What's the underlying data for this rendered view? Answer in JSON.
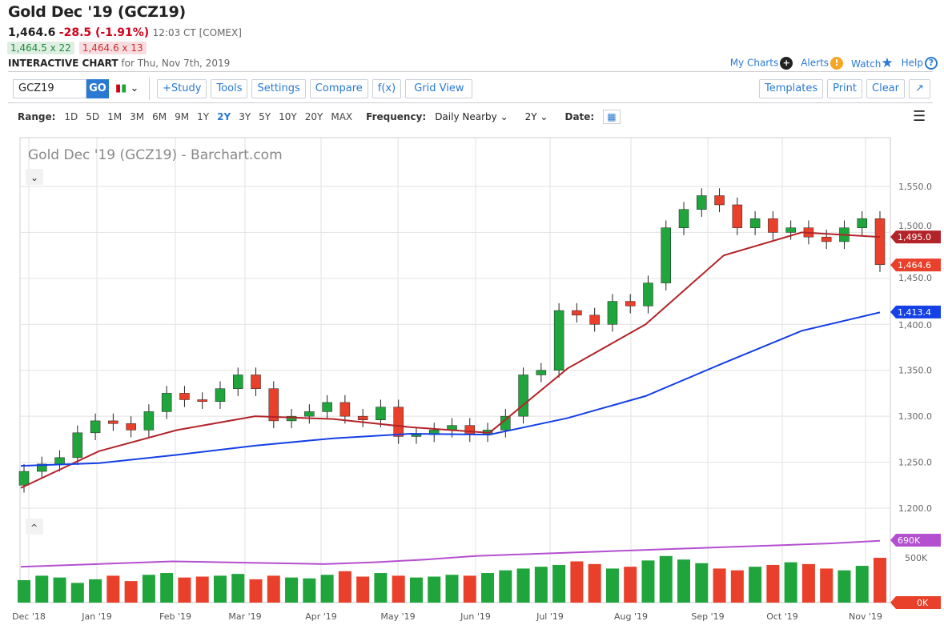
{
  "header": {
    "title": "Gold Dec '19 (GCZ19)",
    "last": "1,464.6",
    "change": "-28.5 (-1.91%)",
    "time": "12:03 CT [COMEX]",
    "bid": "1,464.5 x 22",
    "ask": "1,464.6 x 13",
    "chart_label": "INTERACTIVE CHART",
    "chart_date": "for Thu, Nov 7th, 2019"
  },
  "links": {
    "my_charts": "My Charts",
    "alerts": "Alerts",
    "watch": "Watch",
    "help": "Help"
  },
  "toolbar": {
    "symbol": "GCZ19",
    "go": "GO",
    "study": "+Study",
    "tools": "Tools",
    "settings": "Settings",
    "compare": "Compare",
    "fx": "f(x)",
    "grid": "Grid View",
    "templates": "Templates",
    "print": "Print",
    "clear": "Clear"
  },
  "range": {
    "label": "Range:",
    "options": [
      "1D",
      "5D",
      "1M",
      "3M",
      "6M",
      "9M",
      "1Y",
      "2Y",
      "3Y",
      "5Y",
      "10Y",
      "20Y",
      "MAX"
    ],
    "active": "2Y",
    "frequency_label": "Frequency:",
    "frequency": "Daily Nearby",
    "period": "2Y",
    "date_label": "Date:"
  },
  "colors": {
    "up": "#1fa53c",
    "down": "#e8402a",
    "ma50": "#b22429",
    "ma200": "#1440e6",
    "volma": "#b44fd0",
    "accent": "#2a7ad2"
  },
  "chart_data": {
    "type": "candlestick",
    "title": "Gold Dec '19 (GCZ19) - Barchart.com",
    "x_ticks": [
      "Dec '18",
      "Jan '19",
      "Feb '19",
      "Mar '19",
      "Apr '19",
      "May '19",
      "Jun '19",
      "Jul '19",
      "Aug '19",
      "Sep '19",
      "Oct '19",
      "Nov '19"
    ],
    "y_ticks": [
      "1,550.0",
      "1,500.0",
      "1,450.0",
      "1,400.0",
      "1,350.0",
      "1,300.0",
      "1,250.0",
      "1,200.0"
    ],
    "ylim": [
      1200,
      1560
    ],
    "weekly_close": [
      1240,
      1248,
      1255,
      1282,
      1295,
      1292,
      1285,
      1305,
      1325,
      1318,
      1316,
      1330,
      1345,
      1330,
      1295,
      1300,
      1305,
      1315,
      1300,
      1296,
      1310,
      1278,
      1280,
      1285,
      1290,
      1280,
      1285,
      1300,
      1345,
      1350,
      1415,
      1410,
      1400,
      1425,
      1420,
      1445,
      1505,
      1525,
      1540,
      1530,
      1505,
      1515,
      1500,
      1505,
      1495,
      1490,
      1505,
      1515,
      1465
    ],
    "ma50": [
      1222,
      1262,
      1285,
      1300,
      1297,
      1288,
      1282,
      1352,
      1400,
      1475,
      1500,
      1495
    ],
    "ma200": [
      1246,
      1249,
      1258,
      1268,
      1276,
      1281,
      1280,
      1298,
      1322,
      1358,
      1393,
      1413
    ],
    "price_labels": {
      "ma50": "1,495.0",
      "last": "1,464.6",
      "ma200": "1,413.4"
    },
    "volume": {
      "weekly_k": [
        250,
        300,
        280,
        220,
        260,
        300,
        240,
        310,
        330,
        280,
        290,
        300,
        320,
        260,
        300,
        280,
        270,
        310,
        350,
        290,
        330,
        300,
        280,
        290,
        310,
        300,
        330,
        360,
        380,
        400,
        420,
        460,
        430,
        380,
        400,
        470,
        520,
        480,
        440,
        380,
        360,
        400,
        420,
        450,
        430,
        380,
        360,
        410,
        500
      ],
      "ma_k": [
        400,
        420,
        440,
        460,
        450,
        440,
        430,
        450,
        480,
        520,
        540,
        560,
        580,
        600,
        620,
        640,
        660,
        690
      ],
      "y_ticks": [
        "500K",
        "0K"
      ],
      "ma_label": "690K"
    }
  }
}
